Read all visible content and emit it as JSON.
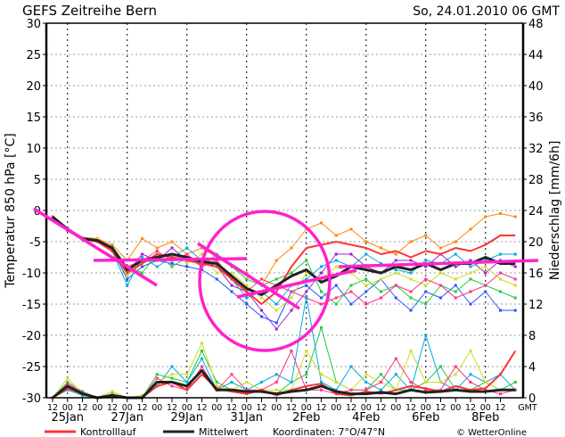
{
  "header": {
    "title": "GEFS Zeitreihe Bern",
    "datetime": "So, 24.01.2010 06 GMT"
  },
  "footer": {
    "legend_control": "Kontrolllauf",
    "legend_mean": "Mittelwert",
    "coordinates": "Koordinaten: 7°O/47°N",
    "copyright": "© WetterOnline"
  },
  "colors": {
    "control": "#ff3333",
    "mean": "#222222",
    "annotation": "#ff22cc",
    "grid": "#999999"
  },
  "chart_data": {
    "type": "line",
    "title": "GEFS Zeitreihe Bern",
    "ylabel_left": "Temperatur 850 hPa [°C]",
    "ylabel_right": "Niederschlag [mm/6h]",
    "ylim_left": [
      -30,
      30
    ],
    "ylim_right": [
      0,
      48
    ],
    "yticks_left": [
      "30",
      "25",
      "20",
      "15",
      "10",
      "5",
      "0",
      "-5",
      "-10",
      "-15",
      "-20",
      "-25",
      "-30"
    ],
    "yticks_right": [
      "48",
      "44",
      "40",
      "36",
      "32",
      "28",
      "24",
      "20",
      "16",
      "12",
      "8",
      "4",
      "0"
    ],
    "xtick_hours": [
      "12",
      "00",
      "12",
      "00",
      "12",
      "00",
      "12",
      "00",
      "12",
      "00",
      "12",
      "00",
      "12",
      "00",
      "12",
      "00",
      "12",
      "00",
      "12",
      "00",
      "12",
      "00",
      "12",
      "00",
      "12",
      "00",
      "12",
      "00",
      "12",
      "00",
      "12"
    ],
    "xtick_end": "GMT",
    "xdate_labels": [
      "25Jan",
      "27Jan",
      "29Jan",
      "31Jan",
      "2Feb",
      "4Feb",
      "6Feb",
      "8Feb"
    ],
    "grid": true,
    "legend": "bottom",
    "temperature_mean": [
      -1,
      -3,
      -4.5,
      -4.8,
      -6,
      -9.5,
      -8,
      -7.5,
      -7,
      -7.5,
      -8.2,
      -8.5,
      -10.5,
      -12.5,
      -13.5,
      -12,
      -10.5,
      -9.5,
      -11.5,
      -10.5,
      -9,
      -9.5,
      -10,
      -9,
      -9.5,
      -8.5,
      -9.5,
      -8.5,
      -8.5,
      -7.5,
      -8.5,
      -8.5
    ],
    "temperature_control": [
      -1,
      -3,
      -4.5,
      -5,
      -6.5,
      -10,
      -8.5,
      -7,
      -7.5,
      -8,
      -8.5,
      -9,
      -11,
      -13,
      -15,
      -13,
      -9,
      -6,
      -5.5,
      -5,
      -5.5,
      -6,
      -7,
      -6.5,
      -7.5,
      -6.5,
      -7,
      -6,
      -6.5,
      -5.5,
      -4,
      -4
    ],
    "temperature_members": [
      [
        -1,
        -3,
        -4.3,
        -4.5,
        -5.5,
        -8,
        -4.5,
        -6,
        -5,
        -7,
        -6,
        -7.5,
        -9,
        -10,
        -12,
        -8,
        -6,
        -3,
        -2,
        -4,
        -3,
        -5,
        -6,
        -7,
        -5,
        -4,
        -6,
        -5,
        -3,
        -1,
        -0.5,
        -1
      ],
      [
        -1,
        -3.2,
        -4.6,
        -5,
        -6.2,
        -11,
        -9,
        -8,
        -8.5,
        -9,
        -9.5,
        -11,
        -13,
        -15,
        -17,
        -18,
        -13,
        -12,
        -14,
        -12,
        -15,
        -13,
        -11,
        -14,
        -16,
        -13,
        -14,
        -12,
        -15,
        -13,
        -16,
        -16
      ],
      [
        -1,
        -2.8,
        -4.4,
        -4.7,
        -6,
        -10,
        -7,
        -8,
        -6,
        -8,
        -8,
        -9,
        -12,
        -13,
        -16,
        -19,
        -16,
        -13,
        -10,
        -7,
        -7,
        -9,
        -10,
        -8,
        -8,
        -9,
        -7,
        -9,
        -8,
        -10,
        -8,
        -9
      ],
      [
        -1,
        -3,
        -4.5,
        -5,
        -5.8,
        -9,
        -10,
        -7,
        -9,
        -7.5,
        -9,
        -7,
        -9,
        -11,
        -12,
        -11,
        -10,
        -8,
        -13,
        -15,
        -12,
        -11,
        -13,
        -12,
        -14,
        -15,
        -12,
        -13,
        -11,
        -12,
        -13,
        -14
      ],
      [
        -1,
        -3.1,
        -4.7,
        -5,
        -6.5,
        -12,
        -7.5,
        -9,
        -7.5,
        -6,
        -8,
        -8.5,
        -11,
        -14,
        -13,
        -15,
        -12,
        -11,
        -9,
        -8,
        -9,
        -7,
        -8.5,
        -9.5,
        -10,
        -8,
        -8.5,
        -7,
        -9,
        -8,
        -7,
        -7
      ],
      [
        -1,
        -2.9,
        -4.3,
        -4.6,
        -6.1,
        -10.5,
        -8.5,
        -7.5,
        -7,
        -8.5,
        -7,
        -10,
        -10,
        -12,
        -14,
        -16,
        -14,
        -10,
        -11,
        -9,
        -10,
        -12,
        -11,
        -10,
        -11,
        -12,
        -10,
        -11,
        -10,
        -9,
        -11,
        -12
      ],
      [
        -1,
        -3,
        -4.5,
        -4.9,
        -6.3,
        -9,
        -8,
        -6.5,
        -8,
        -7,
        -9,
        -8,
        -11,
        -13,
        -11,
        -12,
        -13,
        -14,
        -15,
        -14,
        -13,
        -15,
        -14,
        -12,
        -13,
        -11,
        -12,
        -14,
        -13,
        -12,
        -10,
        -11
      ]
    ],
    "precip_mean": [
      0,
      1.5,
      0.5,
      0,
      0.3,
      0,
      0,
      2,
      2,
      1.5,
      3.5,
      1,
      1,
      0.8,
      0.8,
      0.5,
      0.8,
      1,
      1.5,
      0.8,
      0.5,
      0.5,
      0.7,
      0.5,
      1,
      0.7,
      0.8,
      1,
      0.8,
      0.8,
      1,
      1
    ],
    "precip_control": [
      0,
      1.2,
      0.5,
      0,
      0.2,
      0,
      0,
      1.5,
      2,
      1,
      3,
      1.2,
      0.8,
      0.5,
      1,
      0.3,
      1,
      1.5,
      1.8,
      0.5,
      0.3,
      0.8,
      0.5,
      1,
      1.5,
      1.2,
      0.8,
      1.5,
      1,
      1.2,
      3,
      6
    ],
    "precip_members": [
      [
        0,
        2,
        0.8,
        0,
        0.5,
        0,
        0,
        3,
        2.5,
        2,
        6,
        2,
        1,
        0.5,
        1,
        0.5,
        2,
        3,
        9,
        2,
        1,
        1,
        3,
        1,
        1,
        2,
        4,
        1,
        1,
        2,
        1,
        2
      ],
      [
        0,
        1,
        0.3,
        0,
        0.3,
        0,
        0,
        1.5,
        4,
        2,
        5,
        1,
        2,
        1,
        2,
        3,
        2,
        13,
        2,
        1,
        4,
        2,
        1,
        3,
        1,
        8,
        2,
        1,
        3,
        2,
        3,
        1
      ],
      [
        0,
        2.5,
        0.5,
        0,
        0.8,
        0,
        0.3,
        2,
        3,
        3,
        7,
        1.5,
        1,
        2,
        1,
        1,
        1,
        6,
        3,
        2,
        1,
        3,
        2,
        1,
        6,
        2,
        2,
        3,
        6,
        2,
        1,
        1
      ],
      [
        0,
        1.8,
        0.7,
        0,
        0.2,
        0,
        0,
        2.5,
        1.5,
        1,
        4,
        1,
        3,
        1,
        1,
        2,
        6,
        1,
        1,
        0.5,
        1,
        1,
        2,
        5,
        2,
        1,
        1,
        4,
        2,
        1,
        0.5,
        1
      ]
    ]
  }
}
